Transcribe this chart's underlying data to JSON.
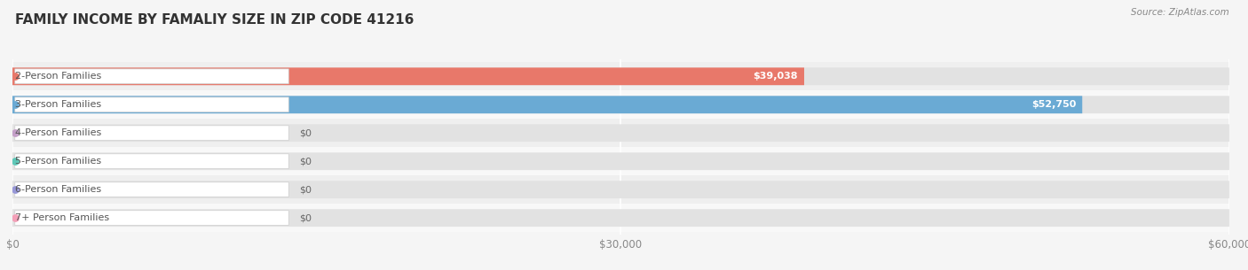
{
  "title": "FAMILY INCOME BY FAMALIY SIZE IN ZIP CODE 41216",
  "source": "Source: ZipAtlas.com",
  "categories": [
    "2-Person Families",
    "3-Person Families",
    "4-Person Families",
    "5-Person Families",
    "6-Person Families",
    "7+ Person Families"
  ],
  "values": [
    39038,
    52750,
    0,
    0,
    0,
    0
  ],
  "bar_colors": [
    "#E8786A",
    "#6AAAD4",
    "#C4A0C8",
    "#5EC8B8",
    "#9898D8",
    "#F4A0B8"
  ],
  "value_labels": [
    "$39,038",
    "$52,750",
    "$0",
    "$0",
    "$0",
    "$0"
  ],
  "xlim": [
    0,
    60000
  ],
  "xticks": [
    0,
    30000,
    60000
  ],
  "xticklabels": [
    "$0",
    "$30,000",
    "$60,000"
  ],
  "background_color": "#f5f5f5",
  "bar_background_color": "#e2e2e2",
  "row_bg_even": "#efefef",
  "row_bg_odd": "#f8f8f8",
  "title_fontsize": 11,
  "label_fontsize": 8,
  "value_fontsize": 8,
  "bar_height": 0.62,
  "fig_width": 14.06,
  "fig_height": 3.05
}
